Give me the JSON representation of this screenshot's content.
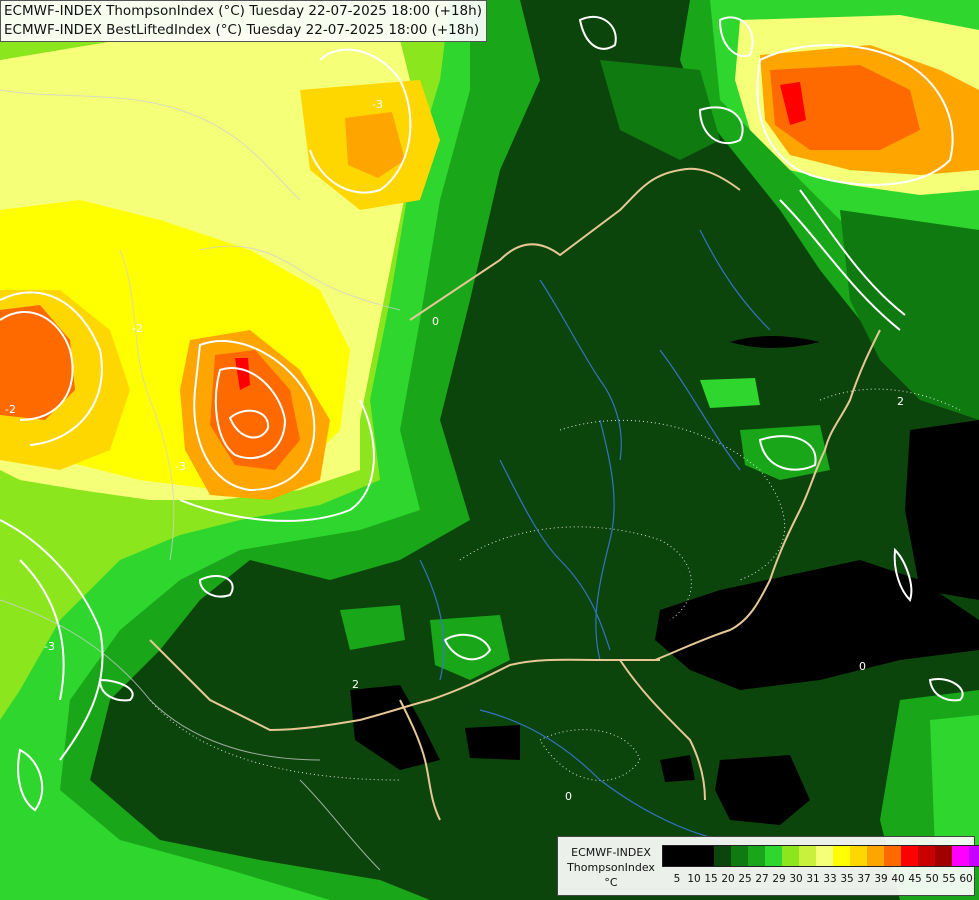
{
  "header": {
    "line1": "ECMWF-INDEX ThompsonIndex (°C) Tuesday 22-07-2025 18:00 (+18h)",
    "line2": "ECMWF-INDEX BestLiftedIndex (°C) Tuesday 22-07-2025 18:00 (+18h)"
  },
  "legend": {
    "title": "ECMWF-INDEX",
    "subtitle": "ThompsonIndex",
    "unit": "°C",
    "swatch_colors": [
      "#000000",
      "#000000",
      "#000000",
      "#0b450b",
      "#0f7a0f",
      "#19a619",
      "#2ed62e",
      "#8ce61e",
      "#c8f03c",
      "#f5ff78",
      "#ffff00",
      "#ffd700",
      "#ffa500",
      "#ff6a00",
      "#ff0000",
      "#c80000",
      "#a00000",
      "#ff00ff",
      "#c800ff",
      "#9600ff",
      "#6400ff",
      "#0000ff"
    ],
    "tick_labels": [
      "5",
      "10",
      "15",
      "20",
      "25",
      "27",
      "29",
      "30",
      "31",
      "33",
      "35",
      "37",
      "39",
      "40",
      "45",
      "50",
      "55",
      "60"
    ]
  },
  "contour_labels": [
    {
      "text": "-3"
    },
    {
      "text": "-2"
    },
    {
      "text": "-2"
    },
    {
      "text": "-3"
    },
    {
      "text": "0"
    },
    {
      "text": "2"
    },
    {
      "text": "2"
    },
    {
      "text": "-3"
    },
    {
      "text": "0"
    },
    {
      "text": "0"
    }
  ],
  "colors": {
    "dark_green": "#0b450b",
    "mid_green": "#0f7a0f",
    "green": "#19a619",
    "bright_green": "#2ed62e",
    "lime": "#8ce61e",
    "yellow_green": "#c8f03c",
    "light_yellow": "#f5ff78",
    "yellow": "#ffff00",
    "gold": "#ffd700",
    "orange": "#ffa500",
    "dark_orange": "#ff6a00",
    "red": "#ff0000",
    "black": "#000000",
    "border": "#e6c896",
    "river": "#3a78d6",
    "contour": "#ffffff"
  }
}
